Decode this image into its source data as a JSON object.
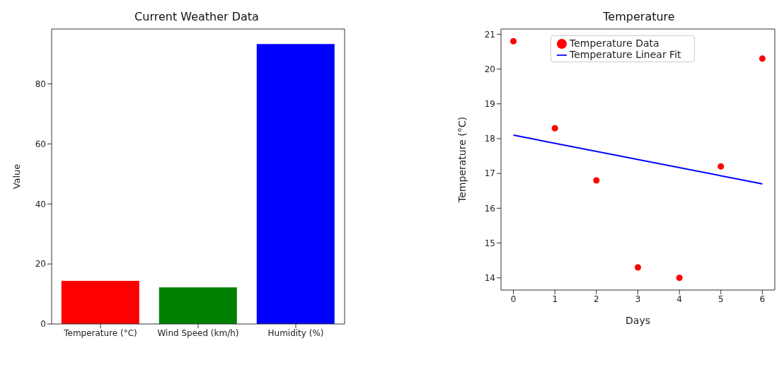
{
  "chart_data": [
    {
      "type": "bar",
      "title": "Current Weather Data",
      "ylabel": "Value",
      "categories": [
        "Temperature (°C)",
        "Wind Speed (km/h)",
        "Humidity (%)"
      ],
      "values": [
        14.4,
        12.2,
        93.3
      ],
      "colors": [
        "#ff0000",
        "#008000",
        "#0000ff"
      ],
      "ylim": [
        0,
        98.3
      ],
      "yticks": [
        0,
        20,
        40,
        60,
        80
      ],
      "grid": false
    },
    {
      "type": "scatter",
      "title": "Temperature",
      "xlabel": "Days",
      "ylabel": "Temperature (°C)",
      "xlim": [
        -0.3,
        6.3
      ],
      "xticks": [
        0,
        1,
        2,
        3,
        4,
        5,
        6
      ],
      "ylim": [
        13.65,
        21.15
      ],
      "yticks": [
        14,
        15,
        16,
        17,
        18,
        19,
        20,
        21
      ],
      "grid": false,
      "legend": "top",
      "series": [
        {
          "name": "Temperature Data",
          "type": "scatter",
          "marker": "circle",
          "color": "#ff0000",
          "x": [
            0,
            1,
            2,
            3,
            4,
            5,
            6
          ],
          "values": [
            20.8,
            18.3,
            16.8,
            14.3,
            14.0,
            17.2,
            20.3
          ]
        },
        {
          "name": "Temperature Linear Fit",
          "type": "line",
          "marker": "none",
          "color": "#0000ff",
          "x": [
            0,
            6
          ],
          "values": [
            18.1,
            16.7
          ]
        }
      ]
    }
  ]
}
